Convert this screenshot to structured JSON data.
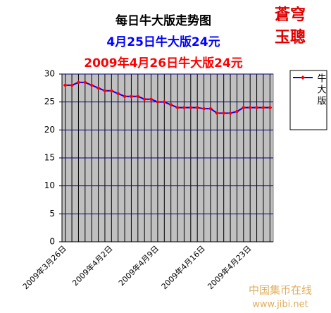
{
  "chart_data": {
    "type": "line",
    "title": "每日牛大版走势图",
    "subtitle": "4月25日牛大版24元",
    "headline": "2009年4月26日牛大版24元",
    "stamp": [
      "蒼穹",
      "玉聰"
    ],
    "watermark": [
      "中国集币在线",
      "www.jibi.net"
    ],
    "categories": [
      "2009年3月26日",
      null,
      null,
      null,
      null,
      null,
      null,
      "2009年4月2日",
      null,
      null,
      null,
      null,
      null,
      null,
      "2009年4月9日",
      null,
      null,
      null,
      null,
      null,
      null,
      "2009年4月16日",
      null,
      null,
      null,
      null,
      null,
      null,
      "2009年4月23日",
      null,
      null,
      null
    ],
    "series": [
      {
        "name": "牛大版",
        "color": "#0000ff",
        "marker_color": "#ff0000",
        "values": [
          28,
          28,
          28.5,
          28.5,
          28,
          27.5,
          27,
          27,
          26.5,
          26,
          26,
          26,
          25.5,
          25.5,
          25,
          25,
          24.5,
          24,
          24,
          24,
          24,
          23.8,
          23.8,
          23,
          23,
          23,
          23.3,
          24,
          24,
          24,
          24,
          24
        ]
      }
    ],
    "ylim": [
      0,
      30
    ],
    "yticks": [
      0,
      5,
      10,
      15,
      20,
      25,
      30
    ],
    "grid": true,
    "legend": "right"
  }
}
